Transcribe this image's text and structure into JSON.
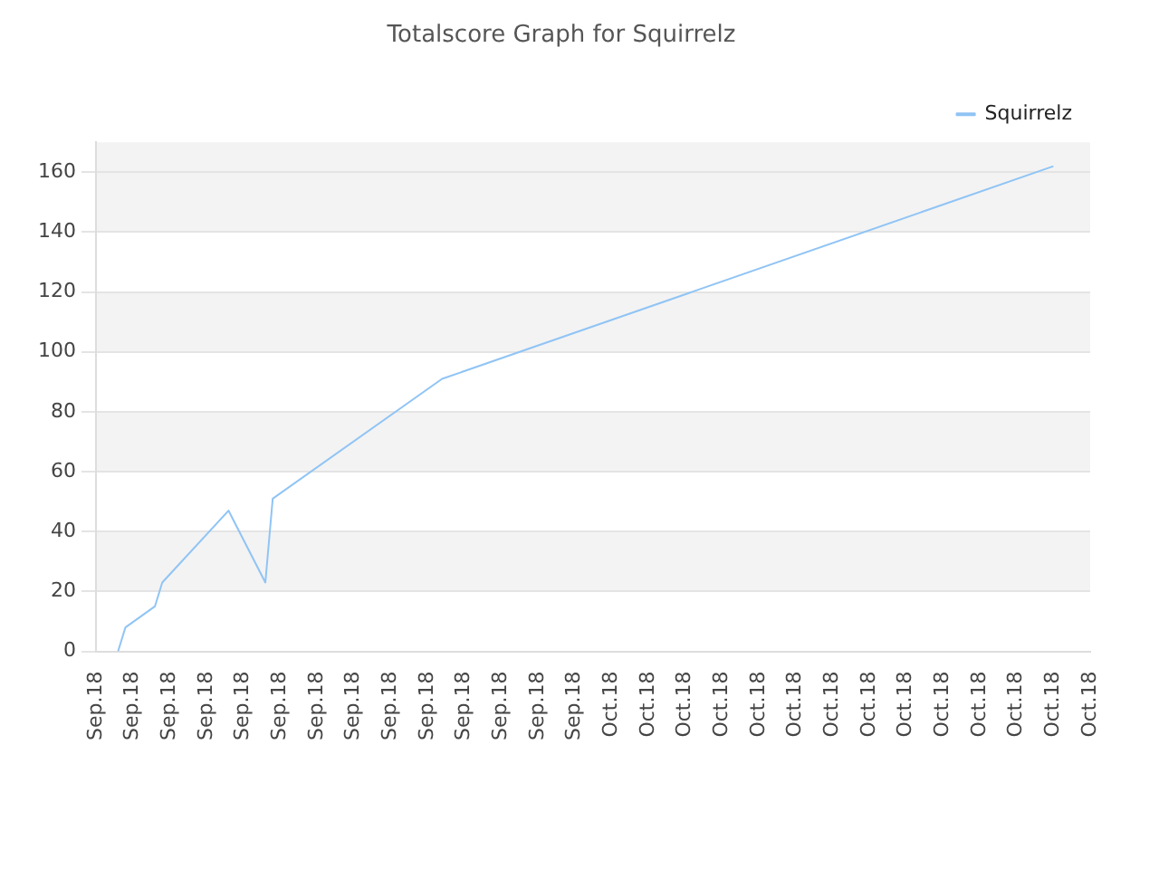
{
  "chart_data": {
    "type": "line",
    "title": "Totalscore Graph for Squirrelz",
    "categories": [
      "Sep.18",
      null,
      null,
      null,
      null,
      "Sep.18",
      null,
      null,
      null,
      null,
      "Sep.18",
      null,
      null,
      null,
      null,
      "Sep.18",
      null,
      null,
      null,
      null,
      "Sep.18",
      null,
      null,
      null,
      null,
      "Sep.18",
      null,
      null,
      null,
      null,
      "Sep.18",
      null,
      null,
      null,
      null,
      "Sep.18",
      null,
      null,
      null,
      null,
      "Sep.18",
      null,
      null,
      null,
      null,
      "Sep.18",
      null,
      null,
      null,
      null,
      "Sep.18",
      null,
      null,
      null,
      null,
      "Sep.18",
      null,
      null,
      null,
      null,
      "Sep.18",
      null,
      null,
      null,
      null,
      "Sep.18",
      null,
      null,
      null,
      null,
      "Oct.18",
      null,
      null,
      null,
      null,
      "Oct.18",
      null,
      null,
      null,
      null,
      "Oct.18",
      null,
      null,
      null,
      null,
      "Oct.18",
      null,
      null,
      null,
      null,
      "Oct.18",
      null,
      null,
      null,
      null,
      "Oct.18",
      null,
      null,
      null,
      null,
      "Oct.18",
      null,
      null,
      null,
      null,
      "Oct.18",
      null,
      null,
      null,
      null,
      "Oct.18",
      null,
      null,
      null,
      null,
      "Oct.18",
      null,
      null,
      null,
      null,
      "Oct.18",
      null,
      null,
      null,
      null,
      "Oct.18",
      null,
      null,
      null,
      null,
      "Oct.18",
      null,
      null,
      null,
      null,
      "Oct.18"
    ],
    "series": [
      {
        "name": "Squirrelz",
        "color": "#90c4f5",
        "values": [
          null,
          null,
          null,
          0,
          8,
          null,
          null,
          null,
          15,
          23,
          null,
          null,
          null,
          null,
          null,
          null,
          null,
          null,
          47,
          null,
          null,
          null,
          null,
          23,
          51,
          null,
          null,
          null,
          null,
          null,
          null,
          null,
          null,
          null,
          null,
          null,
          null,
          null,
          null,
          null,
          null,
          null,
          null,
          null,
          null,
          null,
          null,
          91,
          null,
          null,
          null,
          null,
          null,
          null,
          null,
          null,
          null,
          null,
          null,
          null,
          null,
          null,
          null,
          null,
          null,
          null,
          null,
          null,
          null,
          null,
          null,
          null,
          null,
          null,
          null,
          null,
          null,
          null,
          null,
          null,
          null,
          null,
          null,
          null,
          null,
          null,
          null,
          null,
          null,
          null,
          null,
          null,
          null,
          null,
          null,
          null,
          null,
          null,
          null,
          null,
          null,
          null,
          null,
          null,
          null,
          null,
          null,
          null,
          null,
          null,
          null,
          null,
          null,
          null,
          null,
          null,
          null,
          null,
          null,
          null,
          null,
          null,
          null,
          null,
          null,
          null,
          null,
          null,
          null,
          null,
          162,
          null,
          null,
          null,
          null,
          null
        ]
      }
    ],
    "ylim": [
      0,
      170
    ],
    "yticks": [
      0,
      20,
      40,
      60,
      80,
      100,
      120,
      140,
      160
    ],
    "grid": "y",
    "legend": "top right",
    "marker": "none",
    "line_style": "solid"
  }
}
